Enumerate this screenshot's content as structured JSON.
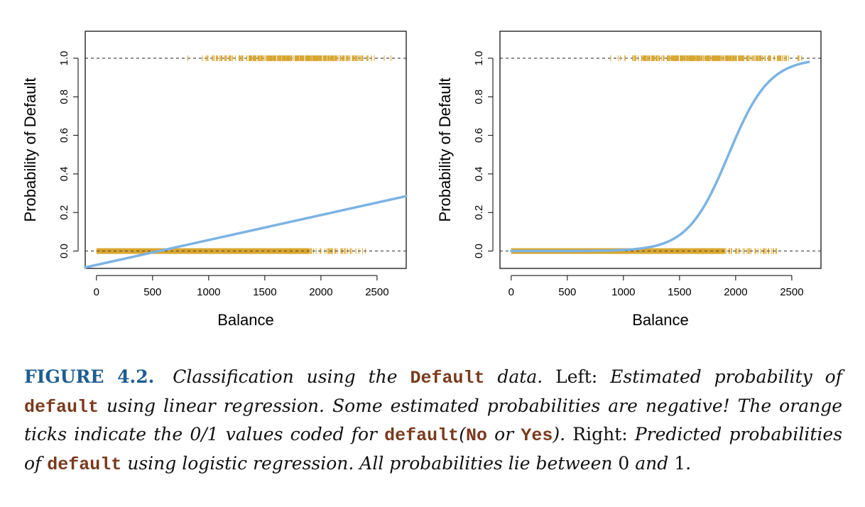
{
  "chart_data": [
    {
      "type": "scatter",
      "panel": "Left",
      "model": "linear",
      "xlabel": "Balance",
      "ylabel": "Probability of Default",
      "xlim": [
        -100,
        2760
      ],
      "ylim": [
        -0.09,
        1.14
      ],
      "xticks": [
        0,
        500,
        1000,
        1500,
        2000,
        2500
      ],
      "yticks": [
        0.0,
        0.2,
        0.4,
        0.6,
        0.8,
        1.0
      ],
      "reference_lines": [
        0.0,
        1.0
      ],
      "fit_line": {
        "x": [
          -100,
          2760
        ],
        "y": [
          -0.085,
          0.285
        ],
        "color": "#7cb3e3"
      },
      "ticks_no": {
        "y": 0.0,
        "range": [
          0,
          2400
        ]
      },
      "ticks_yes": {
        "y": 1.0,
        "range": [
          600,
          2650
        ]
      },
      "tick_color": "#d9a62e"
    },
    {
      "type": "scatter",
      "panel": "Right",
      "model": "logistic",
      "xlabel": "Balance",
      "ylabel": "Probability of Default",
      "xlim": [
        -100,
        2760
      ],
      "ylim": [
        -0.09,
        1.14
      ],
      "xticks": [
        0,
        500,
        1000,
        1500,
        2000,
        2500
      ],
      "yticks": [
        0.0,
        0.2,
        0.4,
        0.6,
        0.8,
        1.0
      ],
      "reference_lines": [
        0.0,
        1.0
      ],
      "logistic_curve": {
        "b0": -10.65,
        "b1": 0.0055,
        "x_range": [
          0,
          2650
        ],
        "color": "#7cb3e3"
      },
      "ticks_no": {
        "y": 0.0,
        "range": [
          0,
          2400
        ]
      },
      "ticks_yes": {
        "y": 1.0,
        "range": [
          600,
          2650
        ]
      },
      "tick_color": "#d9a62e"
    }
  ],
  "caption": {
    "label": "FIGURE 4.2.",
    "p1": "Classification using the",
    "c1": "Default",
    "p2": "data.",
    "p3": "Left:",
    "p4": "Estimated probability of",
    "c2": "default",
    "p5": "using linear regression. Some estimated probabilities are negative! The orange ticks indicate the 0/1 values coded for",
    "c3": "default",
    "p6": "(",
    "c4": "No",
    "p7": "or",
    "c5": "Yes",
    "p8": ").",
    "p9": "Right:",
    "p10": "Predicted probabilities of",
    "c6": "default",
    "p11": "using logistic regression. All probabilities lie between",
    "p12": "0",
    "p13": "and",
    "p14": "1",
    "p15": "."
  }
}
